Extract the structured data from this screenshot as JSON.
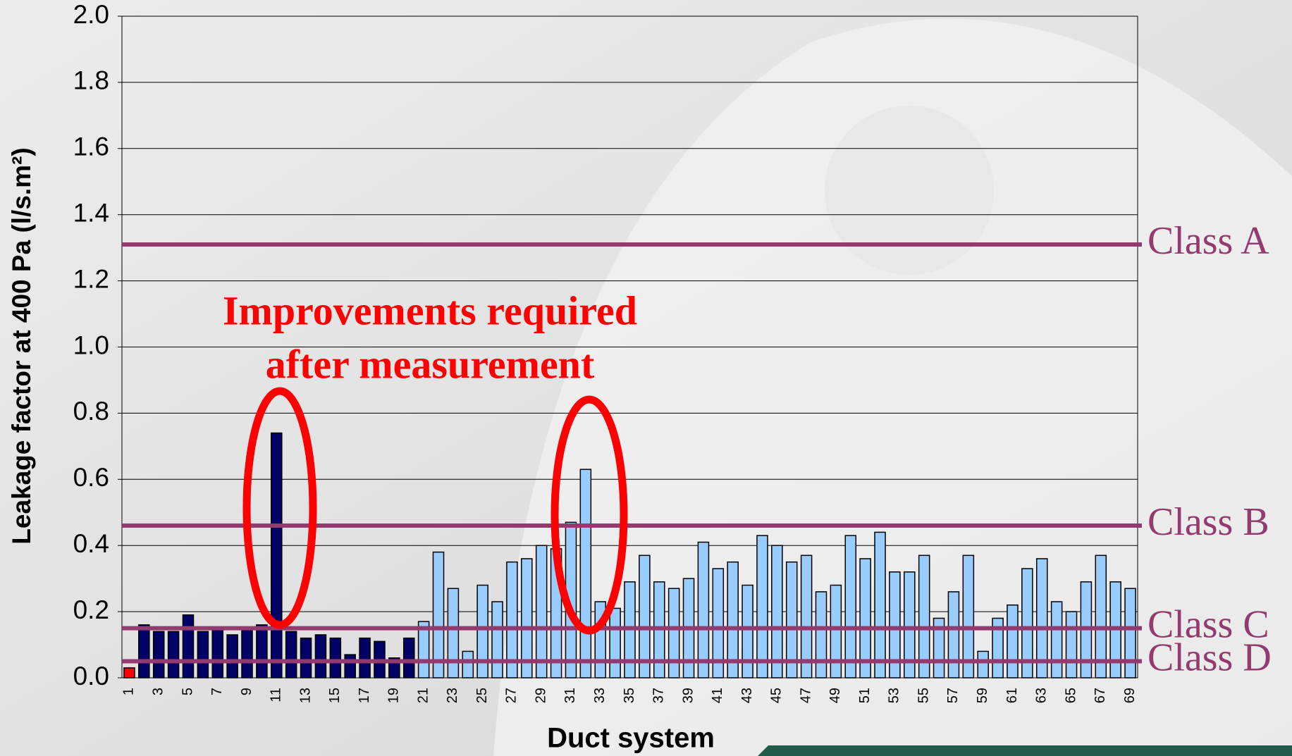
{
  "chart_data": {
    "type": "bar",
    "y_label": "Leakage factor at 400 Pa (l/s.m²)",
    "x_label": "Duct system",
    "annotation": [
      "Improvements required",
      "after measurement"
    ],
    "categories": [
      "1",
      null,
      "3",
      null,
      "5",
      null,
      "7",
      null,
      "9",
      null,
      "11",
      null,
      "13",
      null,
      "15",
      null,
      "17",
      null,
      "19",
      null,
      "21",
      null,
      "23",
      null,
      "25",
      null,
      "27",
      null,
      "29",
      null,
      "31",
      null,
      "33",
      null,
      "35",
      null,
      "37",
      null,
      "39",
      null,
      "41",
      null,
      "43",
      null,
      "45",
      null,
      "47",
      null,
      "49",
      null,
      "51",
      null,
      "53",
      null,
      "55",
      null,
      "57",
      null,
      "59",
      null,
      "61",
      null,
      "63",
      null,
      "65",
      null,
      "67",
      null,
      "69"
    ],
    "values": [
      0.03,
      0.16,
      0.14,
      0.14,
      0.19,
      0.14,
      0.15,
      0.13,
      0.15,
      0.16,
      0.74,
      0.14,
      0.12,
      0.13,
      0.12,
      0.07,
      0.12,
      0.11,
      0.06,
      0.12,
      0.17,
      0.38,
      0.27,
      0.08,
      0.28,
      0.23,
      0.35,
      0.36,
      0.4,
      0.39,
      0.47,
      0.63,
      0.23,
      0.21,
      0.29,
      0.37,
      0.29,
      0.27,
      0.3,
      0.41,
      0.33,
      0.35,
      0.28,
      0.43,
      0.4,
      0.35,
      0.37,
      0.26,
      0.28,
      0.43,
      0.36,
      0.44,
      0.32,
      0.32,
      0.37,
      0.18,
      0.26,
      0.37,
      0.08,
      0.18,
      0.22,
      0.33,
      0.36,
      0.23,
      0.2,
      0.29,
      0.37,
      0.29,
      0.27
    ],
    "colors": [
      "#ff0000",
      "#000066",
      "#000066",
      "#000066",
      "#000066",
      "#000066",
      "#000066",
      "#000066",
      "#000066",
      "#000066",
      "#000066",
      "#000066",
      "#000066",
      "#000066",
      "#000066",
      "#000066",
      "#000066",
      "#000066",
      "#000066",
      "#000066",
      "#99ccff",
      "#99ccff",
      "#99ccff",
      "#99ccff",
      "#99ccff",
      "#99ccff",
      "#99ccff",
      "#99ccff",
      "#99ccff",
      "#99ccff",
      "#99ccff",
      "#99ccff",
      "#99ccff",
      "#99ccff",
      "#99ccff",
      "#99ccff",
      "#99ccff",
      "#99ccff",
      "#99ccff",
      "#99ccff",
      "#99ccff",
      "#99ccff",
      "#99ccff",
      "#99ccff",
      "#99ccff",
      "#99ccff",
      "#99ccff",
      "#99ccff",
      "#99ccff",
      "#99ccff",
      "#99ccff",
      "#99ccff",
      "#99ccff",
      "#99ccff",
      "#99ccff",
      "#99ccff",
      "#99ccff",
      "#99ccff",
      "#99ccff",
      "#99ccff",
      "#99ccff",
      "#99ccff",
      "#99ccff",
      "#99ccff",
      "#99ccff",
      "#99ccff",
      "#99ccff",
      "#99ccff",
      "#99ccff"
    ],
    "ylim": [
      0,
      2.0
    ],
    "yticks": [
      {
        "value": 0,
        "label": "0.0"
      },
      0.2,
      0.4,
      0.6,
      0.8,
      {
        "value": 1,
        "label": "1.0"
      },
      1.2,
      1.4,
      1.6,
      1.8,
      {
        "value": 2,
        "label": "2.0"
      }
    ],
    "grid": true,
    "reference_lines": [
      {
        "label": "Class A",
        "value": 1.31
      },
      {
        "label": "Class B",
        "value": 0.46
      },
      {
        "label": "Class C",
        "value": 0.15
      },
      {
        "label": "Class D",
        "value": 0.05
      }
    ],
    "reference_color": "#933a6e"
  }
}
